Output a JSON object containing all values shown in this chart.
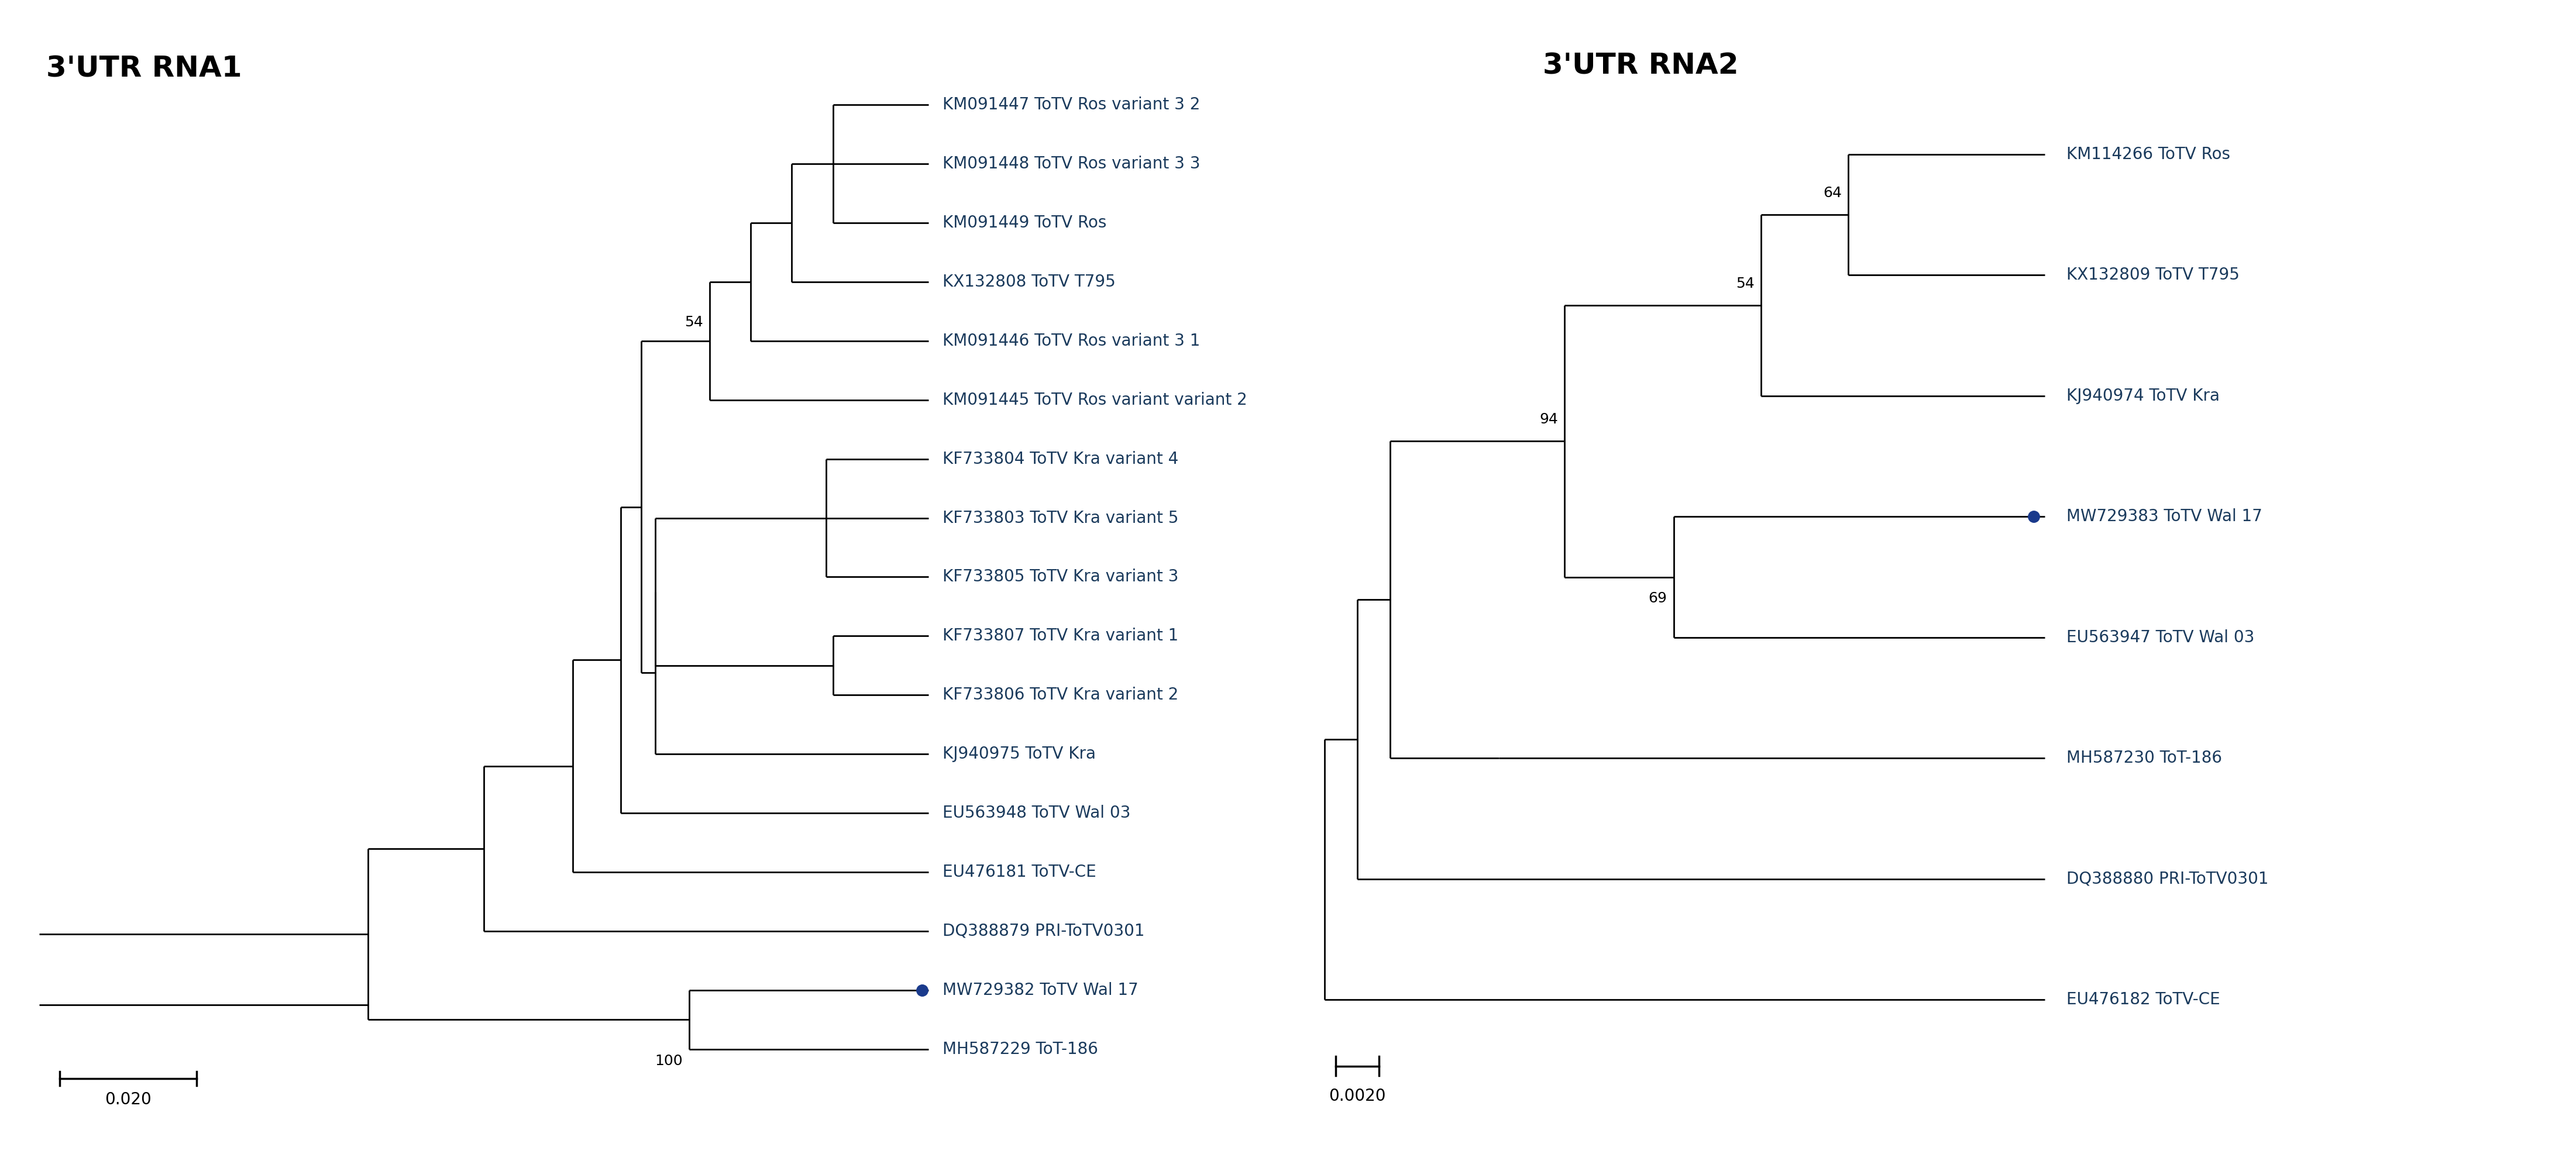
{
  "title1": "3'UTR RNA1",
  "title2": "3'UTR RNA2",
  "title_fontsize": 36,
  "label_fontsize": 20,
  "bootstrap_fontsize": 18,
  "scale_fontsize": 20,
  "line_color": "#000000",
  "label_color": "#1a3a5c",
  "lw": 2.0,
  "tree1": {
    "scale_bar_value": "0.020",
    "leaves_top_to_bottom": [
      "KM091447 ToTV Ros variant 3 2",
      "KM091448 ToTV Ros variant 3 3",
      "KM091449 ToTV Ros",
      "KX132808 ToTV T795",
      "KM091446 ToTV Ros variant 3 1",
      "KM091445 ToTV Ros variant variant 2",
      "KF733804 ToTV Kra variant 4",
      "KF733803 ToTV Kra variant 5",
      "KF733805 ToTV Kra variant 3",
      "KF733807 ToTV Kra variant 1",
      "KF733806 ToTV Kra variant 2",
      "KJ940975 ToTV Kra",
      "EU563948 ToTV Wal 03",
      "EU476181 ToTV-CE",
      "DQ388879 PRI-ToTV0301",
      "MW729382 ToTV Wal 17",
      "MH587229 ToT-186"
    ],
    "highlight_leaf": "MW729382 ToTV Wal 17"
  },
  "tree2": {
    "scale_bar_value": "0.0020",
    "leaves_top_to_bottom": [
      "KM114266 ToTV Ros",
      "KX132809 ToTV T795",
      "KJ940974 ToTV Kra",
      "MW729383 ToTV Wal 17",
      "EU563947 ToTV Wal 03",
      "MH587230 ToT-186",
      "DQ388880 PRI-ToTV0301",
      "EU476182 ToTV-CE"
    ],
    "highlight_leaf": "MW729383 ToTV Wal 17"
  }
}
